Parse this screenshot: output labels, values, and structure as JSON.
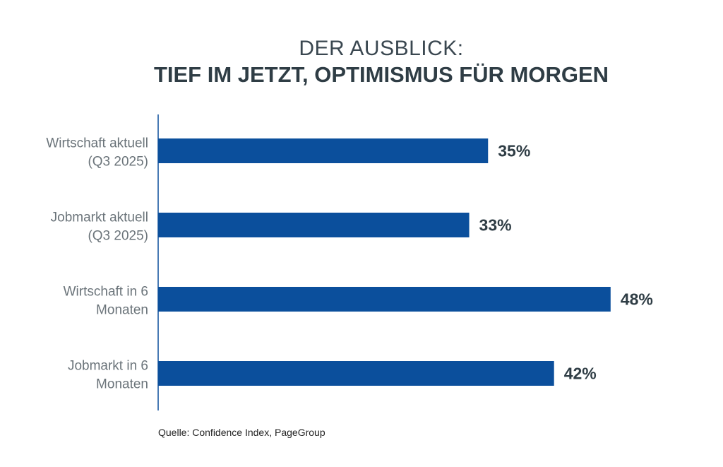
{
  "chart_data": {
    "type": "bar",
    "orientation": "horizontal",
    "title": "DER AUSBLICK:",
    "subtitle": "TIEF IM JETZT, OPTIMISMUS FÜR MORGEN",
    "categories": [
      [
        "Wirtschaft aktuell",
        "(Q3 2025)"
      ],
      [
        "Jobmarkt aktuell",
        "(Q3 2025)"
      ],
      [
        "Wirtschaft in 6",
        "Monaten"
      ],
      [
        "Jobmarkt in 6",
        "Monaten"
      ]
    ],
    "values": [
      35,
      33,
      48,
      42
    ],
    "data_labels": [
      "35%",
      "33%",
      "48%",
      "42%"
    ],
    "unit": "%",
    "xlim": [
      0,
      50
    ],
    "grid": false,
    "bar_color": "#0b4f9c",
    "label_color": "#2f3d45",
    "source": "Quelle: Confidence Index, PageGroup"
  }
}
